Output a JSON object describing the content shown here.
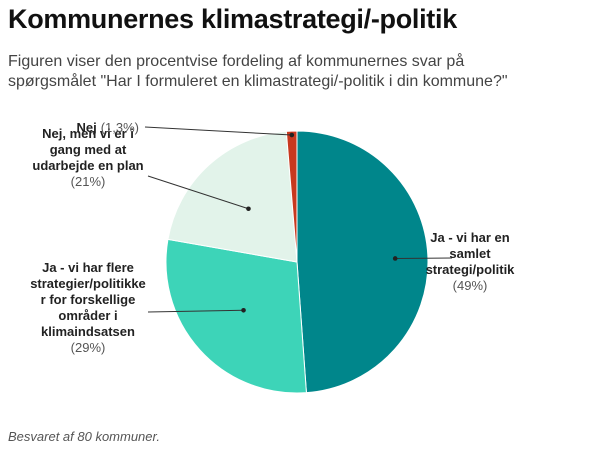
{
  "title": "Kommunernes klimastrategi/-politik",
  "subtitle_lines": [
    "Figuren viser den procentvise fordeling af kommunernes svar på",
    "spørgsmålet \"Har I formuleret en klimastrategi/-politik i din kommune?\""
  ],
  "footnote": "Besvaret af 80 kommuner.",
  "chart_data": {
    "type": "pie",
    "title": "",
    "slices": [
      {
        "label_lines": [
          "Ja - vi har en",
          "samlet",
          "strategi/politik"
        ],
        "pct_text": "(49%)",
        "value": 49,
        "color": "#00868b"
      },
      {
        "label_lines": [
          "Ja - vi har flere",
          "strategier/politikke",
          "r for forskellige",
          "områder i",
          "klimaindsatsen"
        ],
        "pct_text": "(29%)",
        "value": 29,
        "color": "#3dd4b8"
      },
      {
        "label_lines": [
          "Nej, men vi er i",
          "gang med at",
          "udarbejde en plan"
        ],
        "pct_text": "(21%)",
        "value": 21,
        "color": "#e2f3ea"
      },
      {
        "label_lines": [
          "Nej"
        ],
        "pct_text": "(1,3%)",
        "value": 1.3,
        "color": "#c8391f"
      }
    ]
  }
}
